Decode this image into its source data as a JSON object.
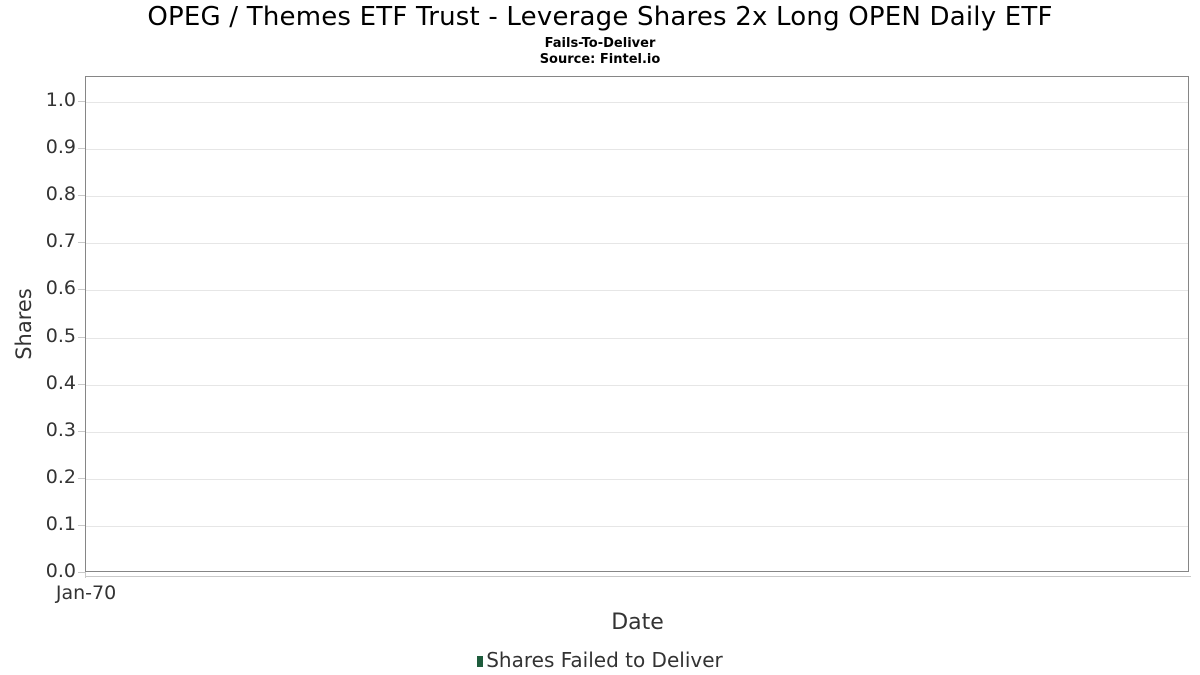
{
  "chart_data": {
    "type": "bar",
    "title": "OPEG / Themes ETF Trust - Leverage Shares 2x Long OPEN Daily ETF",
    "subtitle": "Fails-To-Deliver",
    "source": "Source: Fintel.io",
    "xlabel": "Date",
    "ylabel": "Shares",
    "x_ticks": [
      "Jan-70"
    ],
    "y_ticks": [
      "1.0",
      "0.9",
      "0.8",
      "0.7",
      "0.6",
      "0.5",
      "0.4",
      "0.3",
      "0.2",
      "0.1",
      "0.0"
    ],
    "ylim": [
      0,
      1.05
    ],
    "grid": "horizontal",
    "legend_position": "bottom",
    "series": [
      {
        "name": "Shares Failed to Deliver",
        "color": "#1e5c3c",
        "x": [],
        "values": []
      }
    ],
    "colors": {
      "grid": "#e6e6e6",
      "frame": "#868686",
      "axis_tick": "#c9c9c9",
      "text": "#333333",
      "title_text": "#000000",
      "background": "#ffffff"
    }
  }
}
